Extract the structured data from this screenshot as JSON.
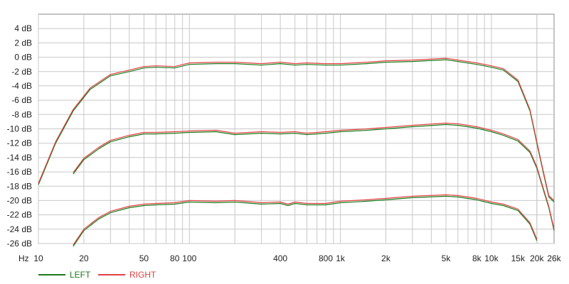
{
  "chart_data": {
    "type": "line",
    "x_scale": "log",
    "xlim": [
      10,
      26000
    ],
    "ylim": [
      -26,
      6
    ],
    "x_unit_label": "Hz",
    "y_ticks": [
      4,
      2,
      0,
      -2,
      -4,
      -6,
      -8,
      -10,
      -12,
      -14,
      -16,
      -18,
      -20,
      -22,
      -24,
      -26
    ],
    "y_tick_labels": [
      "4 dB",
      "2 dB",
      "0 dB",
      "-2 dB",
      "-4 dB",
      "-6 dB",
      "-8 dB",
      "-10 dB",
      "-12 dB",
      "-14 dB",
      "-16 dB",
      "-18 dB",
      "-20 dB",
      "-22 dB",
      "-24 dB",
      "-26 dB"
    ],
    "x_ticks": [
      10,
      20,
      50,
      80,
      100,
      400,
      800,
      1000,
      2000,
      5000,
      8000,
      10000,
      15000,
      20000,
      26000
    ],
    "x_tick_labels": [
      "10",
      "20",
      "50",
      "80",
      "100",
      "400",
      "800",
      "1k",
      "2k",
      "5k",
      "8k",
      "10k",
      "15k",
      "20k",
      "26k"
    ],
    "grid": true,
    "legend_position": "bottom-left",
    "colors": {
      "left": "#1a7a1a",
      "right": "#e04040",
      "grid": "#c8c8c8",
      "axis": "#888888"
    },
    "series": [
      {
        "name": "LEFT",
        "group": "top",
        "x": [
          10,
          13,
          17,
          22,
          30,
          40,
          50,
          60,
          80,
          100,
          150,
          200,
          300,
          400,
          500,
          600,
          800,
          1000,
          1500,
          2000,
          3000,
          5000,
          6000,
          8000,
          10000,
          12000,
          15000,
          18000,
          20000,
          22000,
          24000,
          26000
        ],
        "y": [
          -17.8,
          -12,
          -7.5,
          -4.5,
          -2.6,
          -2.0,
          -1.5,
          -1.4,
          -1.5,
          -1.0,
          -0.9,
          -0.9,
          -1.1,
          -0.9,
          -1.1,
          -1.0,
          -1.1,
          -1.1,
          -0.9,
          -0.7,
          -0.6,
          -0.35,
          -0.6,
          -1.0,
          -1.4,
          -1.8,
          -3.4,
          -7.5,
          -12,
          -16,
          -19.5,
          -20.2
        ]
      },
      {
        "name": "RIGHT",
        "group": "top",
        "x": [
          10,
          13,
          17,
          22,
          30,
          40,
          50,
          60,
          80,
          100,
          150,
          200,
          300,
          400,
          500,
          600,
          800,
          1000,
          1500,
          2000,
          3000,
          5000,
          6000,
          8000,
          10000,
          12000,
          15000,
          18000,
          20000,
          22000,
          24000,
          26000
        ],
        "y": [
          -17.6,
          -11.8,
          -7.3,
          -4.3,
          -2.4,
          -1.8,
          -1.3,
          -1.2,
          -1.3,
          -0.8,
          -0.7,
          -0.7,
          -0.9,
          -0.7,
          -0.9,
          -0.8,
          -0.9,
          -0.9,
          -0.7,
          -0.5,
          -0.4,
          -0.15,
          -0.4,
          -0.8,
          -1.2,
          -1.6,
          -3.2,
          -7.3,
          -11.8,
          -15.8,
          -19.3,
          -20.0
        ]
      },
      {
        "name": "LEFT",
        "group": "middle",
        "x": [
          17,
          20,
          25,
          30,
          40,
          50,
          60,
          80,
          100,
          150,
          200,
          300,
          400,
          500,
          600,
          800,
          1000,
          1500,
          2000,
          3000,
          5000,
          6000,
          8000,
          10000,
          12000,
          15000,
          18000,
          20000,
          22000,
          24000,
          26000
        ],
        "y": [
          -16.3,
          -14.3,
          -12.8,
          -11.8,
          -11.1,
          -10.7,
          -10.7,
          -10.6,
          -10.5,
          -10.4,
          -10.8,
          -10.6,
          -10.7,
          -10.6,
          -10.8,
          -10.6,
          -10.4,
          -10.2,
          -10.0,
          -9.7,
          -9.4,
          -9.5,
          -9.9,
          -10.4,
          -10.9,
          -11.7,
          -13.3,
          -15.5,
          -18.4,
          -21,
          -24.2
        ]
      },
      {
        "name": "RIGHT",
        "group": "middle",
        "x": [
          17,
          20,
          25,
          30,
          40,
          50,
          60,
          80,
          100,
          150,
          200,
          300,
          400,
          500,
          600,
          800,
          1000,
          1500,
          2000,
          3000,
          5000,
          6000,
          8000,
          10000,
          12000,
          15000,
          18000,
          20000,
          22000,
          24000,
          26000
        ],
        "y": [
          -16.1,
          -14.1,
          -12.6,
          -11.6,
          -10.9,
          -10.5,
          -10.5,
          -10.4,
          -10.3,
          -10.2,
          -10.6,
          -10.4,
          -10.5,
          -10.4,
          -10.6,
          -10.4,
          -10.2,
          -10.0,
          -9.8,
          -9.5,
          -9.2,
          -9.3,
          -9.7,
          -10.2,
          -10.7,
          -11.5,
          -13.1,
          -15.3,
          -18.2,
          -20.8,
          -24.0
        ]
      },
      {
        "name": "LEFT",
        "group": "bottom",
        "x": [
          17,
          20,
          25,
          30,
          40,
          50,
          60,
          80,
          100,
          150,
          200,
          300,
          400,
          450,
          500,
          600,
          800,
          1000,
          1500,
          2000,
          3000,
          5000,
          6000,
          8000,
          10000,
          12000,
          15000,
          18000,
          20000
        ],
        "y": [
          -26.4,
          -24.2,
          -22.6,
          -21.7,
          -21.0,
          -20.7,
          -20.6,
          -20.5,
          -20.2,
          -20.3,
          -20.2,
          -20.5,
          -20.4,
          -20.7,
          -20.4,
          -20.6,
          -20.6,
          -20.3,
          -20.1,
          -19.9,
          -19.6,
          -19.4,
          -19.5,
          -19.9,
          -20.4,
          -20.7,
          -21.4,
          -23.3,
          -25.6
        ]
      },
      {
        "name": "RIGHT",
        "group": "bottom",
        "x": [
          17,
          20,
          25,
          30,
          40,
          50,
          60,
          80,
          100,
          150,
          200,
          300,
          400,
          450,
          500,
          600,
          800,
          1000,
          1500,
          2000,
          3000,
          5000,
          6000,
          8000,
          10000,
          12000,
          15000,
          18000,
          20000
        ],
        "y": [
          -26.2,
          -24.0,
          -22.4,
          -21.5,
          -20.8,
          -20.5,
          -20.4,
          -20.3,
          -20.0,
          -20.1,
          -20.0,
          -20.3,
          -20.2,
          -20.5,
          -20.2,
          -20.4,
          -20.4,
          -20.1,
          -19.9,
          -19.7,
          -19.4,
          -19.2,
          -19.3,
          -19.7,
          -20.2,
          -20.5,
          -21.2,
          -23.1,
          -25.4
        ]
      }
    ],
    "legend": [
      {
        "label": "LEFT",
        "color": "#1a7a1a"
      },
      {
        "label": "RIGHT",
        "color": "#e04040"
      }
    ]
  }
}
